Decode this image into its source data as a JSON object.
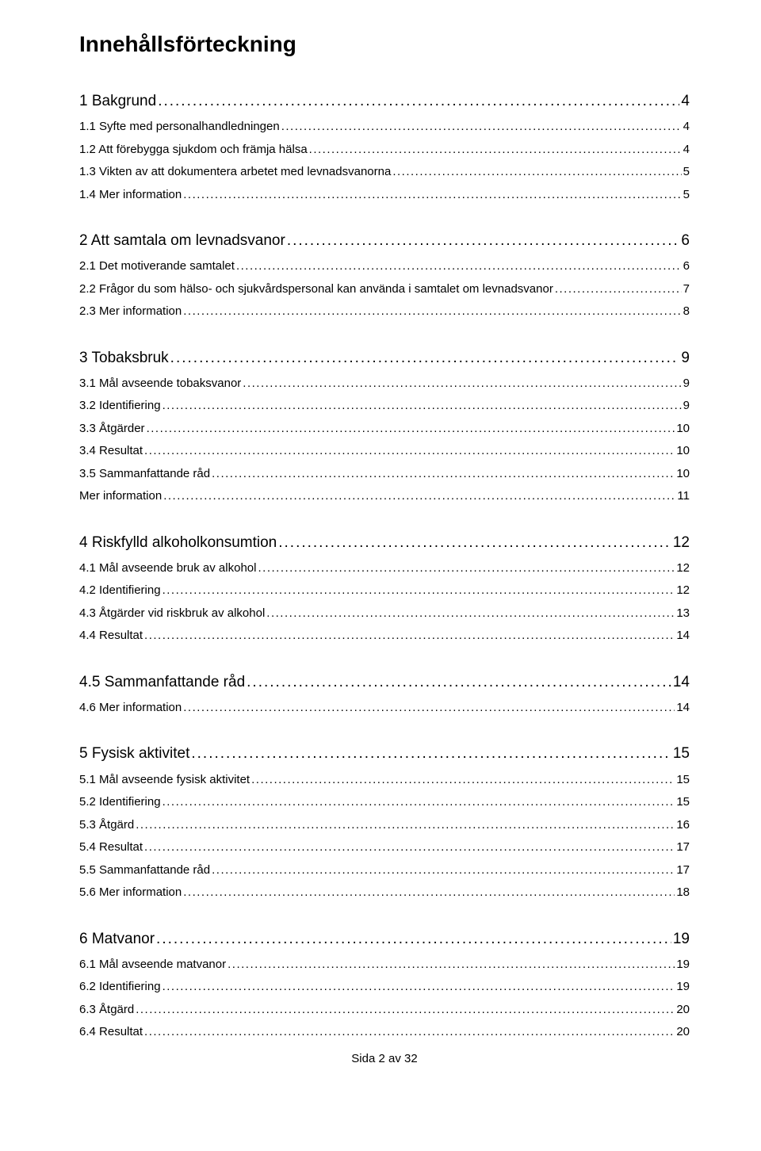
{
  "title": "Innehållsförteckning",
  "toc": [
    {
      "level": 1,
      "label": "1 Bakgrund",
      "page": "4",
      "first": true
    },
    {
      "level": 2,
      "label": "1.1 Syfte med personalhandledningen",
      "page": "4"
    },
    {
      "level": 2,
      "label": "1.2 Att förebygga sjukdom och främja hälsa",
      "page": "4"
    },
    {
      "level": 2,
      "label": "1.3 Vikten av att dokumentera arbetet med levnadsvanorna",
      "page": "5"
    },
    {
      "level": 2,
      "label": "1.4 Mer information",
      "page": "5"
    },
    {
      "level": 1,
      "label": "2 Att samtala om levnadsvanor",
      "page": "6"
    },
    {
      "level": 2,
      "label": "2.1 Det motiverande samtalet",
      "page": "6"
    },
    {
      "level": 2,
      "label": "2.2 Frågor du som hälso- och sjukvårdspersonal kan använda i samtalet om levnadsvanor",
      "page": "7"
    },
    {
      "level": 2,
      "label": "2.3 Mer information",
      "page": "8"
    },
    {
      "level": 1,
      "label": "3 Tobaksbruk",
      "page": "9"
    },
    {
      "level": 2,
      "label": "3.1 Mål avseende tobaksvanor",
      "page": "9"
    },
    {
      "level": 2,
      "label": "3.2 Identifiering",
      "page": "9"
    },
    {
      "level": 2,
      "label": "3.3 Åtgärder",
      "page": "10"
    },
    {
      "level": 2,
      "label": "3.4 Resultat",
      "page": "10"
    },
    {
      "level": 2,
      "label": "3.5 Sammanfattande råd",
      "page": "10"
    },
    {
      "level": 2,
      "label": "Mer information",
      "page": "11"
    },
    {
      "level": 1,
      "label": "4 Riskfylld alkoholkonsumtion",
      "page": "12"
    },
    {
      "level": 2,
      "label": "4.1 Mål avseende bruk av alkohol",
      "page": "12"
    },
    {
      "level": 2,
      "label": "4.2 Identifiering",
      "page": "12"
    },
    {
      "level": 2,
      "label": "4.3 Åtgärder vid riskbruk av alkohol",
      "page": "13"
    },
    {
      "level": 2,
      "label": "4.4 Resultat",
      "page": "14"
    },
    {
      "level": 1,
      "label": "4.5 Sammanfattande råd",
      "page": "14"
    },
    {
      "level": 2,
      "label": "4.6 Mer information",
      "page": "14"
    },
    {
      "level": 1,
      "label": "5 Fysisk aktivitet",
      "page": "15"
    },
    {
      "level": 2,
      "label": "5.1 Mål avseende fysisk aktivitet",
      "page": "15"
    },
    {
      "level": 2,
      "label": "5.2 Identifiering",
      "page": "15"
    },
    {
      "level": 2,
      "label": "5.3 Åtgärd",
      "page": "16"
    },
    {
      "level": 2,
      "label": "5.4 Resultat",
      "page": "17"
    },
    {
      "level": 2,
      "label": "5.5 Sammanfattande råd",
      "page": "17"
    },
    {
      "level": 2,
      "label": "5.6 Mer information",
      "page": "18"
    },
    {
      "level": 1,
      "label": "6 Matvanor",
      "page": "19"
    },
    {
      "level": 2,
      "label": "6.1 Mål avseende matvanor",
      "page": "19"
    },
    {
      "level": 2,
      "label": "6.2 Identifiering",
      "page": "19"
    },
    {
      "level": 2,
      "label": "6.3 Åtgärd",
      "page": "20"
    },
    {
      "level": 2,
      "label": "6.4 Resultat",
      "page": "20"
    }
  ],
  "footer": "Sida 2 av 32",
  "colors": {
    "text": "#000000",
    "background": "#ffffff"
  },
  "typography": {
    "title_fontsize": 28,
    "title_weight": "bold",
    "level1_fontsize": 19,
    "level2_fontsize": 15,
    "font_family": "Arial"
  }
}
